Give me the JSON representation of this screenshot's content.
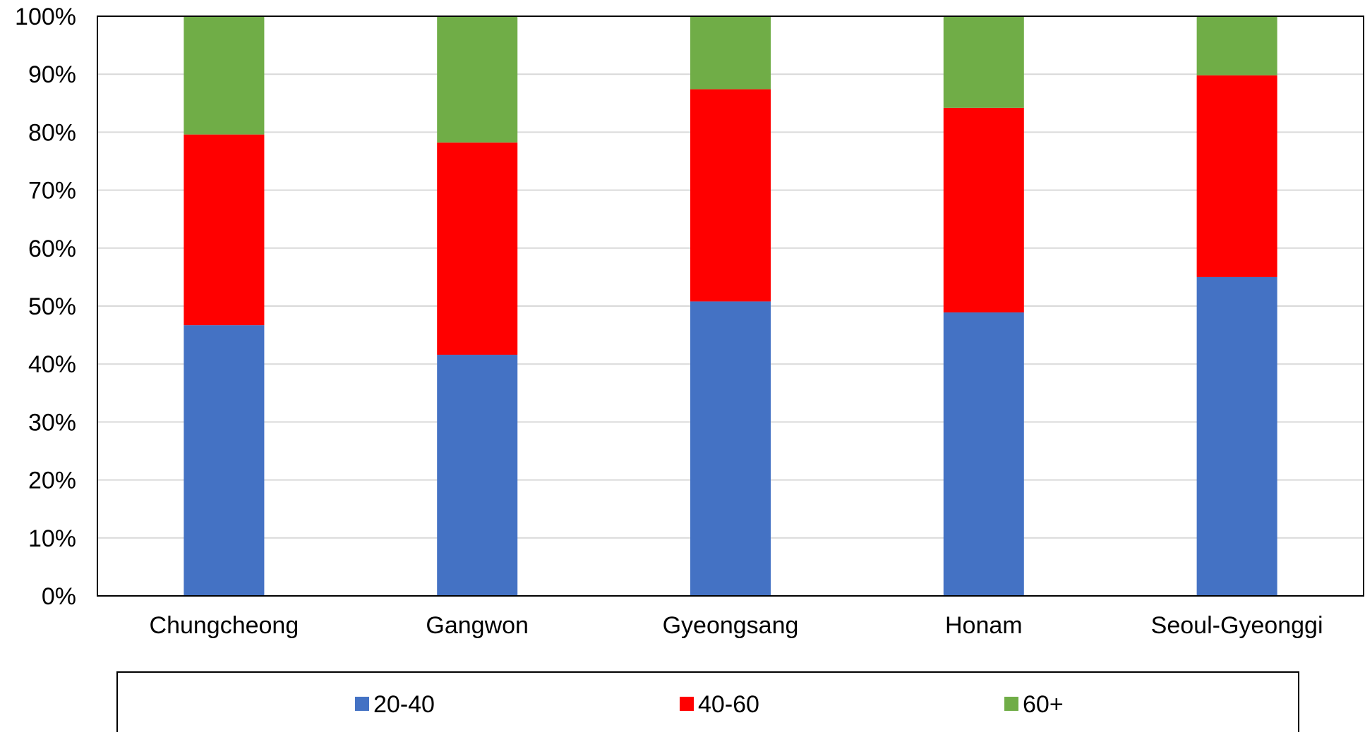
{
  "chart_data": {
    "type": "bar",
    "stacked": true,
    "percent_stacked": true,
    "categories": [
      "Chungcheong",
      "Gangwon",
      "Gyeongsang",
      "Honam",
      "Seoul-Gyeonggi"
    ],
    "series": [
      {
        "name": "20-40",
        "color": "#4472C4",
        "values": [
          46.7,
          41.6,
          50.8,
          48.9,
          55.0
        ]
      },
      {
        "name": "40-60",
        "color": "#FF0000",
        "values": [
          32.9,
          36.6,
          36.6,
          35.3,
          34.8
        ]
      },
      {
        "name": "60+",
        "color": "#70AD47",
        "values": [
          20.4,
          21.8,
          12.6,
          15.8,
          10.2
        ]
      }
    ],
    "ylim": [
      0,
      100
    ],
    "yticks": [
      "0%",
      "10%",
      "20%",
      "30%",
      "40%",
      "50%",
      "60%",
      "70%",
      "80%",
      "90%",
      "100%"
    ],
    "xlabel": "",
    "ylabel": "",
    "grid": true,
    "legend_position": "bottom"
  }
}
